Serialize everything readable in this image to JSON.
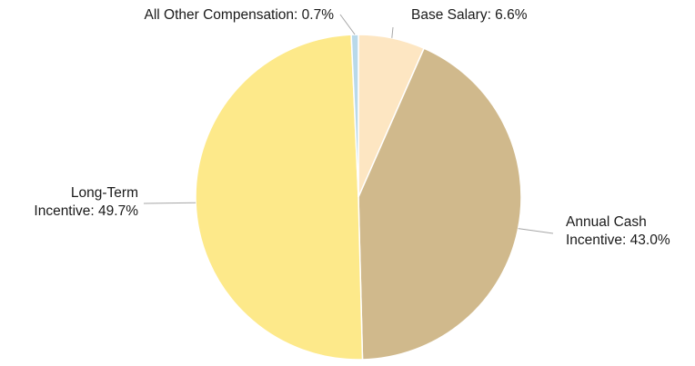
{
  "chart_data": {
    "type": "pie",
    "title": "",
    "slices": [
      {
        "label_lines": [
          "Base Salary: 6.6%"
        ],
        "value": 6.6,
        "color": "#fde6c2"
      },
      {
        "label_lines": [
          "Annual Cash",
          "Incentive: 43.0%"
        ],
        "value": 43.0,
        "color": "#d0b98c"
      },
      {
        "label_lines": [
          "Long-Term",
          "Incentive: 49.7%"
        ],
        "value": 49.7,
        "color": "#fde98a"
      },
      {
        "label_lines": [
          "All Other Compensation: 0.7%"
        ],
        "value": 0.7,
        "color": "#b9d9ea"
      }
    ],
    "start": "12 o'clock",
    "direction": "clockwise",
    "slice_border_color": "#ffffff",
    "leader_line_color": "#a6a6a6",
    "legend": "none"
  }
}
